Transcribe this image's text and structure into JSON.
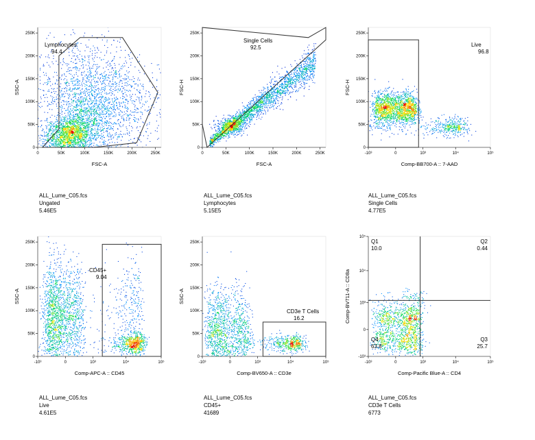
{
  "chart_data": [
    {
      "type": "scatter",
      "subtype": "flow-cytometry-density",
      "xlabel": "FSC-A",
      "ylabel": "SSC-A",
      "xscale": "linear",
      "xlim": [
        0,
        262144
      ],
      "xticks": [
        0,
        50000,
        100000,
        150000,
        200000,
        250000
      ],
      "xtick_labels": [
        "0",
        "50K",
        "100K",
        "150K",
        "200K",
        "250K"
      ],
      "yscale": "linear",
      "ylim": [
        0,
        262144
      ],
      "yticks": [
        0,
        50000,
        100000,
        150000,
        200000,
        250000
      ],
      "ytick_labels": [
        "0",
        "50K",
        "100K",
        "150K",
        "200K",
        "250K"
      ],
      "gates": [
        {
          "name": "Lymphocytes",
          "percent": "94.4",
          "shape": "polygon",
          "vertices": [
            [
              10000,
              0
            ],
            [
              45000,
              40000
            ],
            [
              45000,
              200000
            ],
            [
              90000,
              240000
            ],
            [
              180000,
              240000
            ],
            [
              255000,
              120000
            ],
            [
              210000,
              10000
            ],
            [
              120000,
              0
            ]
          ]
        }
      ],
      "caption": {
        "file": "ALL_Lume_C05.fcs",
        "population": "Ungated",
        "count": "5.46E5"
      },
      "populations": [
        {
          "x": 70000,
          "y": 30000,
          "sx": 18000,
          "sy": 16000,
          "n": 700
        },
        {
          "x": 95000,
          "y": 40000,
          "sx": 25000,
          "sy": 40000,
          "n": 900
        },
        {
          "x": 110000,
          "y": 120000,
          "sx": 60000,
          "sy": 60000,
          "n": 1300
        },
        {
          "x": 40000,
          "y": 20000,
          "sx": 20000,
          "sy": 20000,
          "n": 500
        },
        {
          "x": 150000,
          "y": 70000,
          "sx": 60000,
          "sy": 60000,
          "n": 700
        }
      ]
    },
    {
      "type": "scatter",
      "subtype": "flow-cytometry-density",
      "xlabel": "FSC-A",
      "ylabel": "FSC-H",
      "xscale": "linear",
      "xlim": [
        0,
        262144
      ],
      "xticks": [
        0,
        50000,
        100000,
        150000,
        200000,
        250000
      ],
      "xtick_labels": [
        "0",
        "50K",
        "100K",
        "150K",
        "200K",
        "250K"
      ],
      "yscale": "linear",
      "ylim": [
        0,
        262144
      ],
      "yticks": [
        0,
        50000,
        100000,
        150000,
        200000,
        250000
      ],
      "ytick_labels": [
        "0",
        "50K",
        "100K",
        "150K",
        "200K",
        "250K"
      ],
      "gates": [
        {
          "name": "Single Cells",
          "percent": "92.5",
          "shape": "polygon",
          "vertices": [
            [
              0,
              50000
            ],
            [
              10000,
              0
            ],
            [
              262144,
              235000
            ],
            [
              262144,
              262000
            ],
            [
              225000,
              240000
            ],
            [
              0,
              262000
            ]
          ]
        }
      ],
      "caption": {
        "file": "ALL_Lume_C05.fcs",
        "population": "Lymphocytes",
        "count": "5.15E5"
      },
      "populations": [
        {
          "diag": true,
          "x0": 15000,
          "x1": 240000,
          "slope": 0.78,
          "spread": 12000,
          "n": 2200
        },
        {
          "x": 60000,
          "y": 48000,
          "sx": 15000,
          "sy": 9000,
          "n": 500
        }
      ]
    },
    {
      "type": "scatter",
      "subtype": "flow-cytometry-density",
      "xlabel": "Comp-BB700-A :: 7-AAD",
      "ylabel": "FSC-H",
      "xscale": "biexponential",
      "xlim": [
        -1000,
        100000
      ],
      "xticks": [
        -1000,
        0,
        1000,
        10000,
        100000
      ],
      "xtick_labels": [
        "-10³",
        "0",
        "10³",
        "10⁴",
        "10⁵"
      ],
      "yscale": "linear",
      "ylim": [
        0,
        262144
      ],
      "yticks": [
        0,
        50000,
        100000,
        150000,
        200000,
        250000
      ],
      "ytick_labels": [
        "0",
        "50K",
        "100K",
        "150K",
        "200K",
        "250K"
      ],
      "gates": [
        {
          "name": "Live",
          "percent": "96.8",
          "shape": "rectangle",
          "x": [
            -1000,
            700
          ],
          "y": [
            0,
            235000
          ]
        }
      ],
      "caption": {
        "file": "ALL_Lume_C05.fcs",
        "population": "Single Cells",
        "count": "4.77E5"
      },
      "populations": [
        {
          "x": 0,
          "y": 85000,
          "sx": 300,
          "sy": 18000,
          "n": 1900
        },
        {
          "x": 3000,
          "y": 45000,
          "sx": 8000,
          "sy": 10000,
          "n": 600
        }
      ]
    },
    {
      "type": "scatter",
      "subtype": "flow-cytometry-density",
      "xlabel": "Comp-APC-A :: CD45",
      "ylabel": "SSC-A",
      "xscale": "biexponential",
      "xlim": [
        -1000,
        100000
      ],
      "xticks": [
        -1000,
        0,
        1000,
        10000,
        100000
      ],
      "xtick_labels": [
        "-10³",
        "0",
        "10³",
        "10⁴",
        "10⁵"
      ],
      "yscale": "linear",
      "ylim": [
        0,
        262144
      ],
      "yticks": [
        0,
        50000,
        100000,
        150000,
        200000,
        250000
      ],
      "ytick_labels": [
        "0",
        "50K",
        "100K",
        "150K",
        "200K",
        "250K"
      ],
      "gates": [
        {
          "name": "CD45+",
          "percent": "9.04",
          "shape": "rectangle",
          "x": [
            2000,
            100000
          ],
          "y": [
            0,
            245000
          ]
        }
      ],
      "caption": {
        "file": "ALL_Lume_C05.fcs",
        "population": "Live",
        "count": "4.61E5"
      },
      "populations": [
        {
          "x": -100,
          "y": 80000,
          "sx": 250,
          "sy": 60000,
          "n": 1900
        },
        {
          "x": 15000,
          "y": 28000,
          "sx": 9000,
          "sy": 12000,
          "n": 700
        },
        {
          "x": 12000,
          "y": 120000,
          "sx": 8000,
          "sy": 50000,
          "n": 300
        }
      ]
    },
    {
      "type": "scatter",
      "subtype": "flow-cytometry-density",
      "xlabel": "Comp-BV650-A :: CD3e",
      "ylabel": "SSC-A",
      "xscale": "biexponential",
      "xlim": [
        -1000,
        100000
      ],
      "xticks": [
        -1000,
        0,
        1000,
        10000,
        100000
      ],
      "xtick_labels": [
        "-10³",
        "0",
        "10³",
        "10⁴",
        "10⁵"
      ],
      "yscale": "linear",
      "ylim": [
        0,
        262144
      ],
      "yticks": [
        0,
        50000,
        100000,
        150000,
        200000,
        250000
      ],
      "ytick_labels": [
        "0",
        "50K",
        "100K",
        "150K",
        "200K",
        "250K"
      ],
      "gates": [
        {
          "name": "CD3e T Cells",
          "percent": "16.2",
          "shape": "rectangle",
          "x": [
            1500,
            100000
          ],
          "y": [
            0,
            75000
          ]
        }
      ],
      "caption": {
        "file": "ALL_Lume_C05.fcs",
        "population": "CD45+",
        "count": "41689"
      },
      "populations": [
        {
          "x": -100,
          "y": 50000,
          "sx": 300,
          "sy": 50000,
          "n": 1500
        },
        {
          "x": 8000,
          "y": 28000,
          "sx": 8000,
          "sy": 9000,
          "n": 600
        }
      ]
    },
    {
      "type": "scatter",
      "subtype": "flow-cytometry-quadrant",
      "xlabel": "Comp-Pacific Blue-A :: CD4",
      "ylabel": "Comp-BV711-A :: CD8a",
      "xscale": "biexponential",
      "xlim": [
        -1000,
        100000
      ],
      "xticks": [
        -1000,
        0,
        1000,
        10000,
        100000
      ],
      "xtick_labels": [
        "-10³",
        "0",
        "10³",
        "10⁴",
        "10⁵"
      ],
      "yscale": "biexponential",
      "ylim": [
        -1000,
        100000
      ],
      "yticks": [
        -1000,
        0,
        1000,
        10000,
        100000
      ],
      "ytick_labels": [
        "-10³",
        "0",
        "10³",
        "10⁴",
        "10⁵"
      ],
      "quadrant": {
        "x": 800,
        "y": 1200
      },
      "quadrants": [
        {
          "name": "Q1",
          "percent": "10.0",
          "position": "top-left"
        },
        {
          "name": "Q2",
          "percent": "0.44",
          "position": "top-right"
        },
        {
          "name": "Q3",
          "percent": "25.7",
          "position": "bottom-right"
        },
        {
          "name": "Q4",
          "percent": "63.8",
          "position": "bottom-left"
        }
      ],
      "caption": {
        "file": "ALL_Lume_C05.fcs",
        "population": "CD3e T Cells",
        "count": "6773"
      },
      "populations": [
        {
          "x": 100,
          "y": 0,
          "sx": 350,
          "sy": 300,
          "n": 1200
        },
        {
          "x": 300,
          "y": 500,
          "sx": 400,
          "sy": 900,
          "n": 300
        }
      ]
    }
  ]
}
